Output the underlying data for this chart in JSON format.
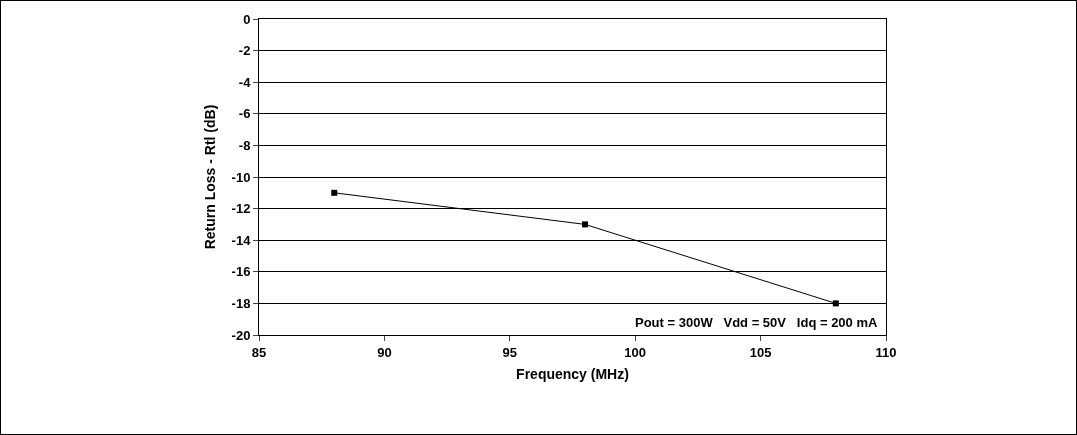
{
  "chart_data": {
    "type": "line",
    "xlabel": "Frequency (MHz)",
    "ylabel": "Return Loss - Rtl (dB)",
    "x": [
      88,
      98,
      108
    ],
    "series": [
      {
        "color": "#000000",
        "values": [
          -11,
          -13,
          -18
        ]
      }
    ],
    "xlim": [
      85,
      110
    ],
    "xticks": [
      85,
      90,
      95,
      100,
      105,
      110
    ],
    "ylim": [
      -20,
      0
    ],
    "yticks": [
      -20,
      -18,
      -16,
      -14,
      -12,
      -10,
      -8,
      -6,
      -4,
      -2,
      0
    ],
    "grid": "y",
    "marker": "square",
    "line_style": "solid",
    "legend": false,
    "annotations": [
      "Pout = 300W   Vdd = 50V   Idq = 200 mA"
    ]
  }
}
